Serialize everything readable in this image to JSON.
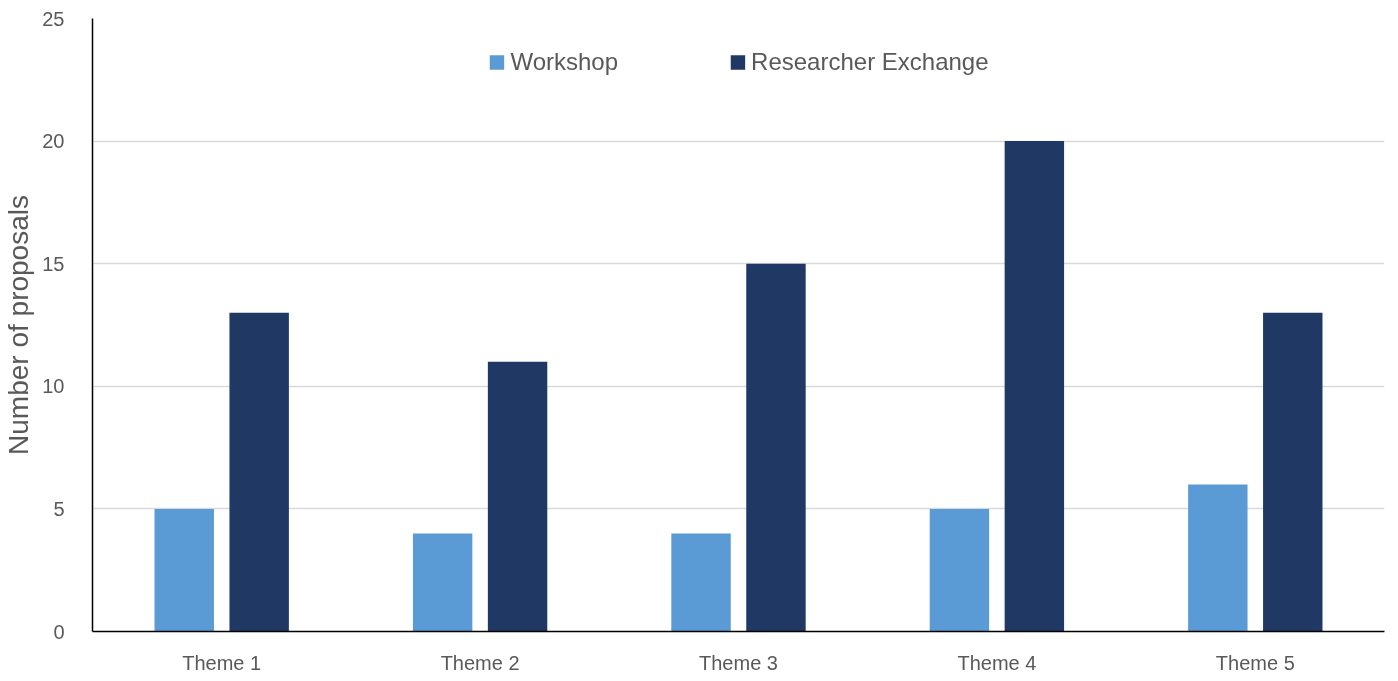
{
  "chart_data": {
    "type": "bar",
    "ylabel": "Number of proposals",
    "categories": [
      "Theme 1",
      "Theme 2",
      "Theme 3",
      "Theme 4",
      "Theme 5"
    ],
    "series": [
      {
        "name": "Workshop",
        "color": "#5b9bd5",
        "values": [
          5,
          4,
          4,
          5,
          6
        ]
      },
      {
        "name": "Researcher Exchange",
        "color": "#203864",
        "values": [
          13,
          11,
          15,
          20,
          13
        ]
      }
    ],
    "ylim": [
      0,
      25
    ],
    "yticks": [
      0,
      5,
      10,
      15,
      20,
      25
    ],
    "grid": "y",
    "legend": "top"
  }
}
